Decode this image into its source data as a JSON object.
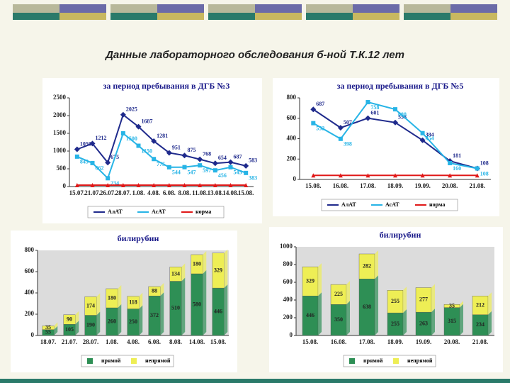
{
  "title": "Данные лабораторного обследования б-ной Т.К.12 лет",
  "chart_data": [
    {
      "type": "line",
      "title": "за период пребывания в ДГБ №3",
      "categories": [
        "15.07.",
        "21.07.",
        "26.07.",
        "28.07.",
        "1.08.",
        "4.08.",
        "6.08.",
        "8.08.",
        "11.08.",
        "13.08.",
        "14.08.",
        "15.08."
      ],
      "series": [
        {
          "name": "АлАТ",
          "color": "#1f2a8c",
          "values": [
            1050,
            1212,
            675,
            2025,
            1687,
            1281,
            951,
            875,
            768,
            654,
            687,
            583
          ]
        },
        {
          "name": "АсАТ",
          "color": "#27b4e6",
          "values": [
            843,
            662,
            234,
            1500,
            1150,
            775,
            544,
            547,
            597,
            456,
            545,
            383
          ]
        },
        {
          "name": "норма",
          "color": "#e01818",
          "values": [
            40,
            40,
            40,
            40,
            40,
            40,
            40,
            40,
            40,
            40,
            40,
            40
          ]
        }
      ],
      "ylim": [
        0,
        2500
      ],
      "yticks": [
        0,
        500,
        1000,
        1500,
        2000,
        2500
      ],
      "legend": "bottom",
      "labelled": [
        "АлАТ",
        "АсАТ"
      ]
    },
    {
      "type": "line",
      "title": "за период пребывания в ДГБ №5",
      "categories": [
        "15.08.",
        "16.08.",
        "17.08.",
        "18.09.",
        "19.09.",
        "20.08.",
        "21.08."
      ],
      "series": [
        {
          "name": "АлАТ",
          "color": "#1f2a8c",
          "values": [
            687,
            507,
            601,
            558,
            384,
            181,
            108
          ]
        },
        {
          "name": "АсАТ",
          "color": "#27b4e6",
          "values": [
            552,
            398,
            758,
            688,
            454,
            160,
            108
          ]
        },
        {
          "name": "норма",
          "color": "#e01818",
          "values": [
            40,
            40,
            40,
            40,
            40,
            40,
            40
          ]
        }
      ],
      "ylim": [
        0,
        800
      ],
      "yticks": [
        0,
        200,
        400,
        600,
        800
      ],
      "legend": "bottom",
      "labelled": [
        "АлАТ",
        "АсАТ"
      ]
    },
    {
      "type": "stacked-bar",
      "title": "билирубин",
      "categories": [
        "18.07.",
        "21.07.",
        "28.07.",
        "1.08.",
        "4.08.",
        "6.08.",
        "8.08.",
        "14.08.",
        "15.08."
      ],
      "series": [
        {
          "name": "прямой",
          "color": "#2e8f55",
          "values": [
            55,
            105,
            190,
            260,
            250,
            372,
            510,
            580,
            446
          ]
        },
        {
          "name": "непрямой",
          "color": "#eeee55",
          "values": [
            35,
            90,
            174,
            180,
            118,
            88,
            134,
            180,
            329
          ]
        }
      ],
      "ylim": [
        0,
        800
      ],
      "yticks": [
        0,
        200,
        400,
        600,
        800
      ],
      "legend": "bottom"
    },
    {
      "type": "stacked-bar",
      "title": "билирубин",
      "categories": [
        "15.08.",
        "16.08.",
        "17.08.",
        "18.09.",
        "19.09.",
        "20.08.",
        "21.08."
      ],
      "series": [
        {
          "name": "прямой",
          "color": "#2e8f55",
          "values": [
            446,
            350,
            638,
            255,
            263,
            315,
            234
          ]
        },
        {
          "name": "непрямой",
          "color": "#eeee55",
          "values": [
            329,
            225,
            282,
            255,
            277,
            35,
            212
          ]
        }
      ],
      "ylim": [
        0,
        1000
      ],
      "yticks": [
        0,
        200,
        400,
        600,
        800,
        1000
      ],
      "legend": "bottom"
    }
  ]
}
